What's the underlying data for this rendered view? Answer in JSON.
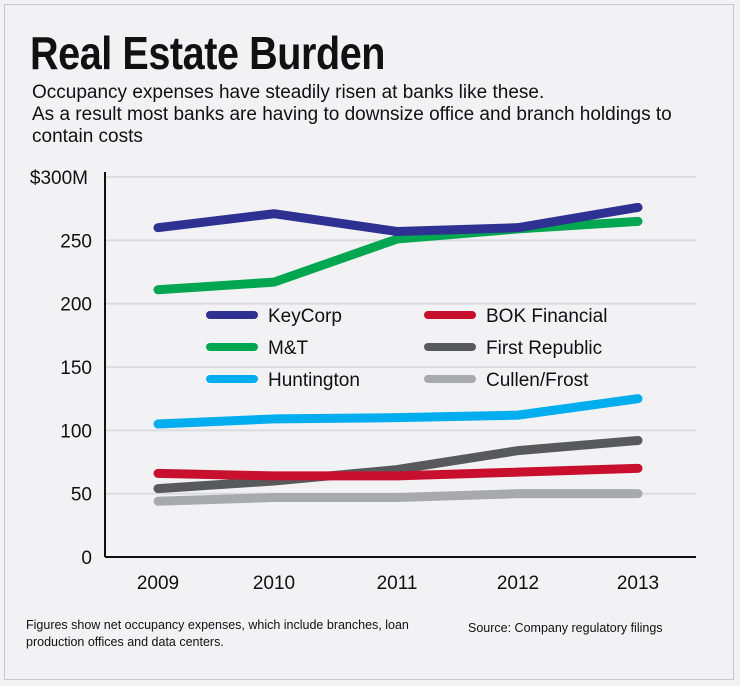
{
  "title": "Real Estate Burden",
  "subtitle_line1": "Occupancy expenses have steadily risen at banks like these.",
  "subtitle_line2": "As a result most banks are having to downsize office and branch holdings to contain costs",
  "footnote": "Figures show net occupancy expenses, which include branches, loan production offices and data centers.",
  "source": "Source: Company regulatory filings",
  "chart_data": {
    "type": "line",
    "x": [
      "2009",
      "2010",
      "2011",
      "2012",
      "2013"
    ],
    "ylim": [
      0,
      300
    ],
    "yticks": [
      0,
      50,
      100,
      150,
      200,
      250,
      300
    ],
    "ytick_labels": [
      "0",
      "50",
      "100",
      "150",
      "200",
      "250",
      "$300M"
    ],
    "grid": true,
    "legend_placement": "center",
    "series": [
      {
        "name": "KeyCorp",
        "color": "#2e3192",
        "values": [
          260,
          271,
          257,
          260,
          276
        ]
      },
      {
        "name": "M&T",
        "color": "#00a650",
        "values": [
          211,
          217,
          251,
          259,
          265
        ]
      },
      {
        "name": "Huntington",
        "color": "#00aeef",
        "values": [
          105,
          109,
          110,
          112,
          125
        ]
      },
      {
        "name": "BOK Financial",
        "color": "#c8102e",
        "values": [
          66,
          64,
          64,
          67,
          70
        ]
      },
      {
        "name": "First Republic",
        "color": "#58595b",
        "values": [
          54,
          60,
          69,
          84,
          92
        ]
      },
      {
        "name": "Cullen/Frost",
        "color": "#a7a9ac",
        "values": [
          44,
          47,
          47,
          50,
          50
        ]
      }
    ]
  }
}
